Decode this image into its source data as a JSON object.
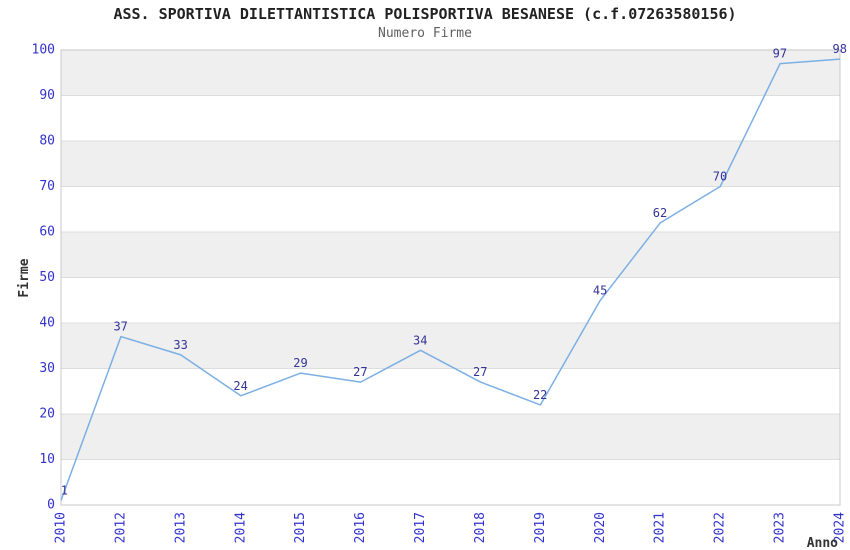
{
  "header": {
    "title": "ASS. SPORTIVA DILETTANTISTICA POLISPORTIVA BESANESE (c.f.07263580156)",
    "subtitle": "Numero Firme"
  },
  "chart_data": {
    "type": "line",
    "title": "ASS. SPORTIVA DILETTANTISTICA POLISPORTIVA BESANESE (c.f.07263580156)",
    "subtitle": "Numero Firme",
    "xlabel": "Anno",
    "ylabel": "Firme",
    "categories": [
      "2010",
      "2012",
      "2013",
      "2014",
      "2015",
      "2016",
      "2017",
      "2018",
      "2019",
      "2020",
      "2021",
      "2022",
      "2023",
      "2024"
    ],
    "values": [
      1,
      37,
      33,
      24,
      29,
      27,
      34,
      27,
      22,
      45,
      62,
      70,
      97,
      98
    ],
    "ylim": [
      0,
      100
    ],
    "ytick_step": 10,
    "yticks": [
      0,
      10,
      20,
      30,
      40,
      50,
      60,
      70,
      80,
      90,
      100
    ],
    "grid": "alternating-bands",
    "legend": "none",
    "colors": {
      "line": "#7cafe4",
      "data_label": "#333399",
      "tick_label": "#3333cc",
      "band": "#efefef",
      "gridline": "#dddddd",
      "plot_border": "#c8c8c8",
      "axis_title": "#333333",
      "title": "#222222",
      "subtitle": "#606060",
      "background": "#ffffff"
    }
  }
}
